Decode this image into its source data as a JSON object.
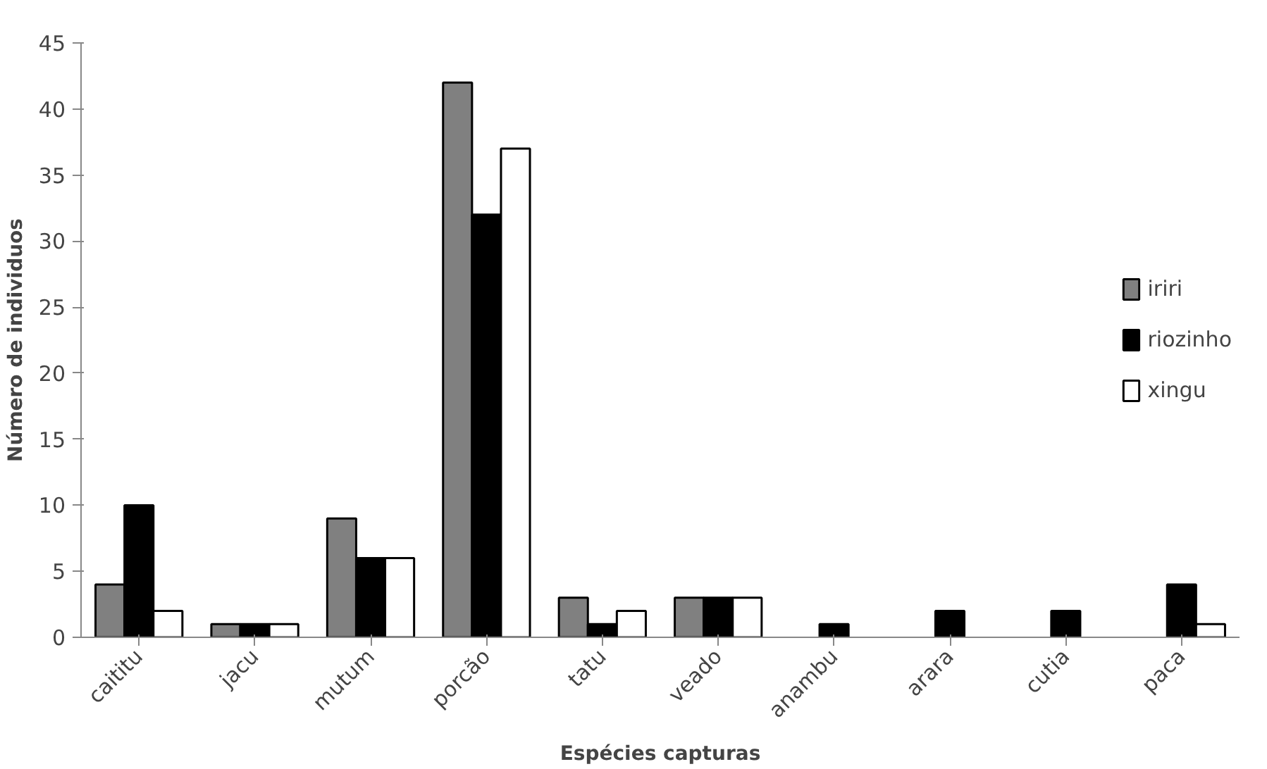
{
  "chart_data": {
    "type": "bar",
    "xlabel": "Espécies capturas",
    "ylabel": "Número de individuos",
    "categories": [
      "caititu",
      "jacu",
      "mutum",
      "porcão",
      "tatu",
      "veado",
      "anambu",
      "arara",
      "cutia",
      "paca"
    ],
    "series": [
      {
        "name": "iriri",
        "color": "#808080",
        "values": [
          4,
          1,
          9,
          42,
          3,
          3,
          0,
          0,
          0,
          0
        ]
      },
      {
        "name": "riozinho",
        "color": "#000000",
        "values": [
          10,
          1,
          6,
          32,
          1,
          3,
          1,
          2,
          2,
          4
        ]
      },
      {
        "name": "xingu",
        "color": "#ffffff",
        "values": [
          2,
          1,
          6,
          37,
          2,
          3,
          0,
          0,
          0,
          1
        ]
      }
    ],
    "ylim": [
      0,
      45
    ],
    "yticks": [
      0,
      5,
      10,
      15,
      20,
      25,
      30,
      35,
      40,
      45
    ],
    "grid": false,
    "legend": "right"
  }
}
